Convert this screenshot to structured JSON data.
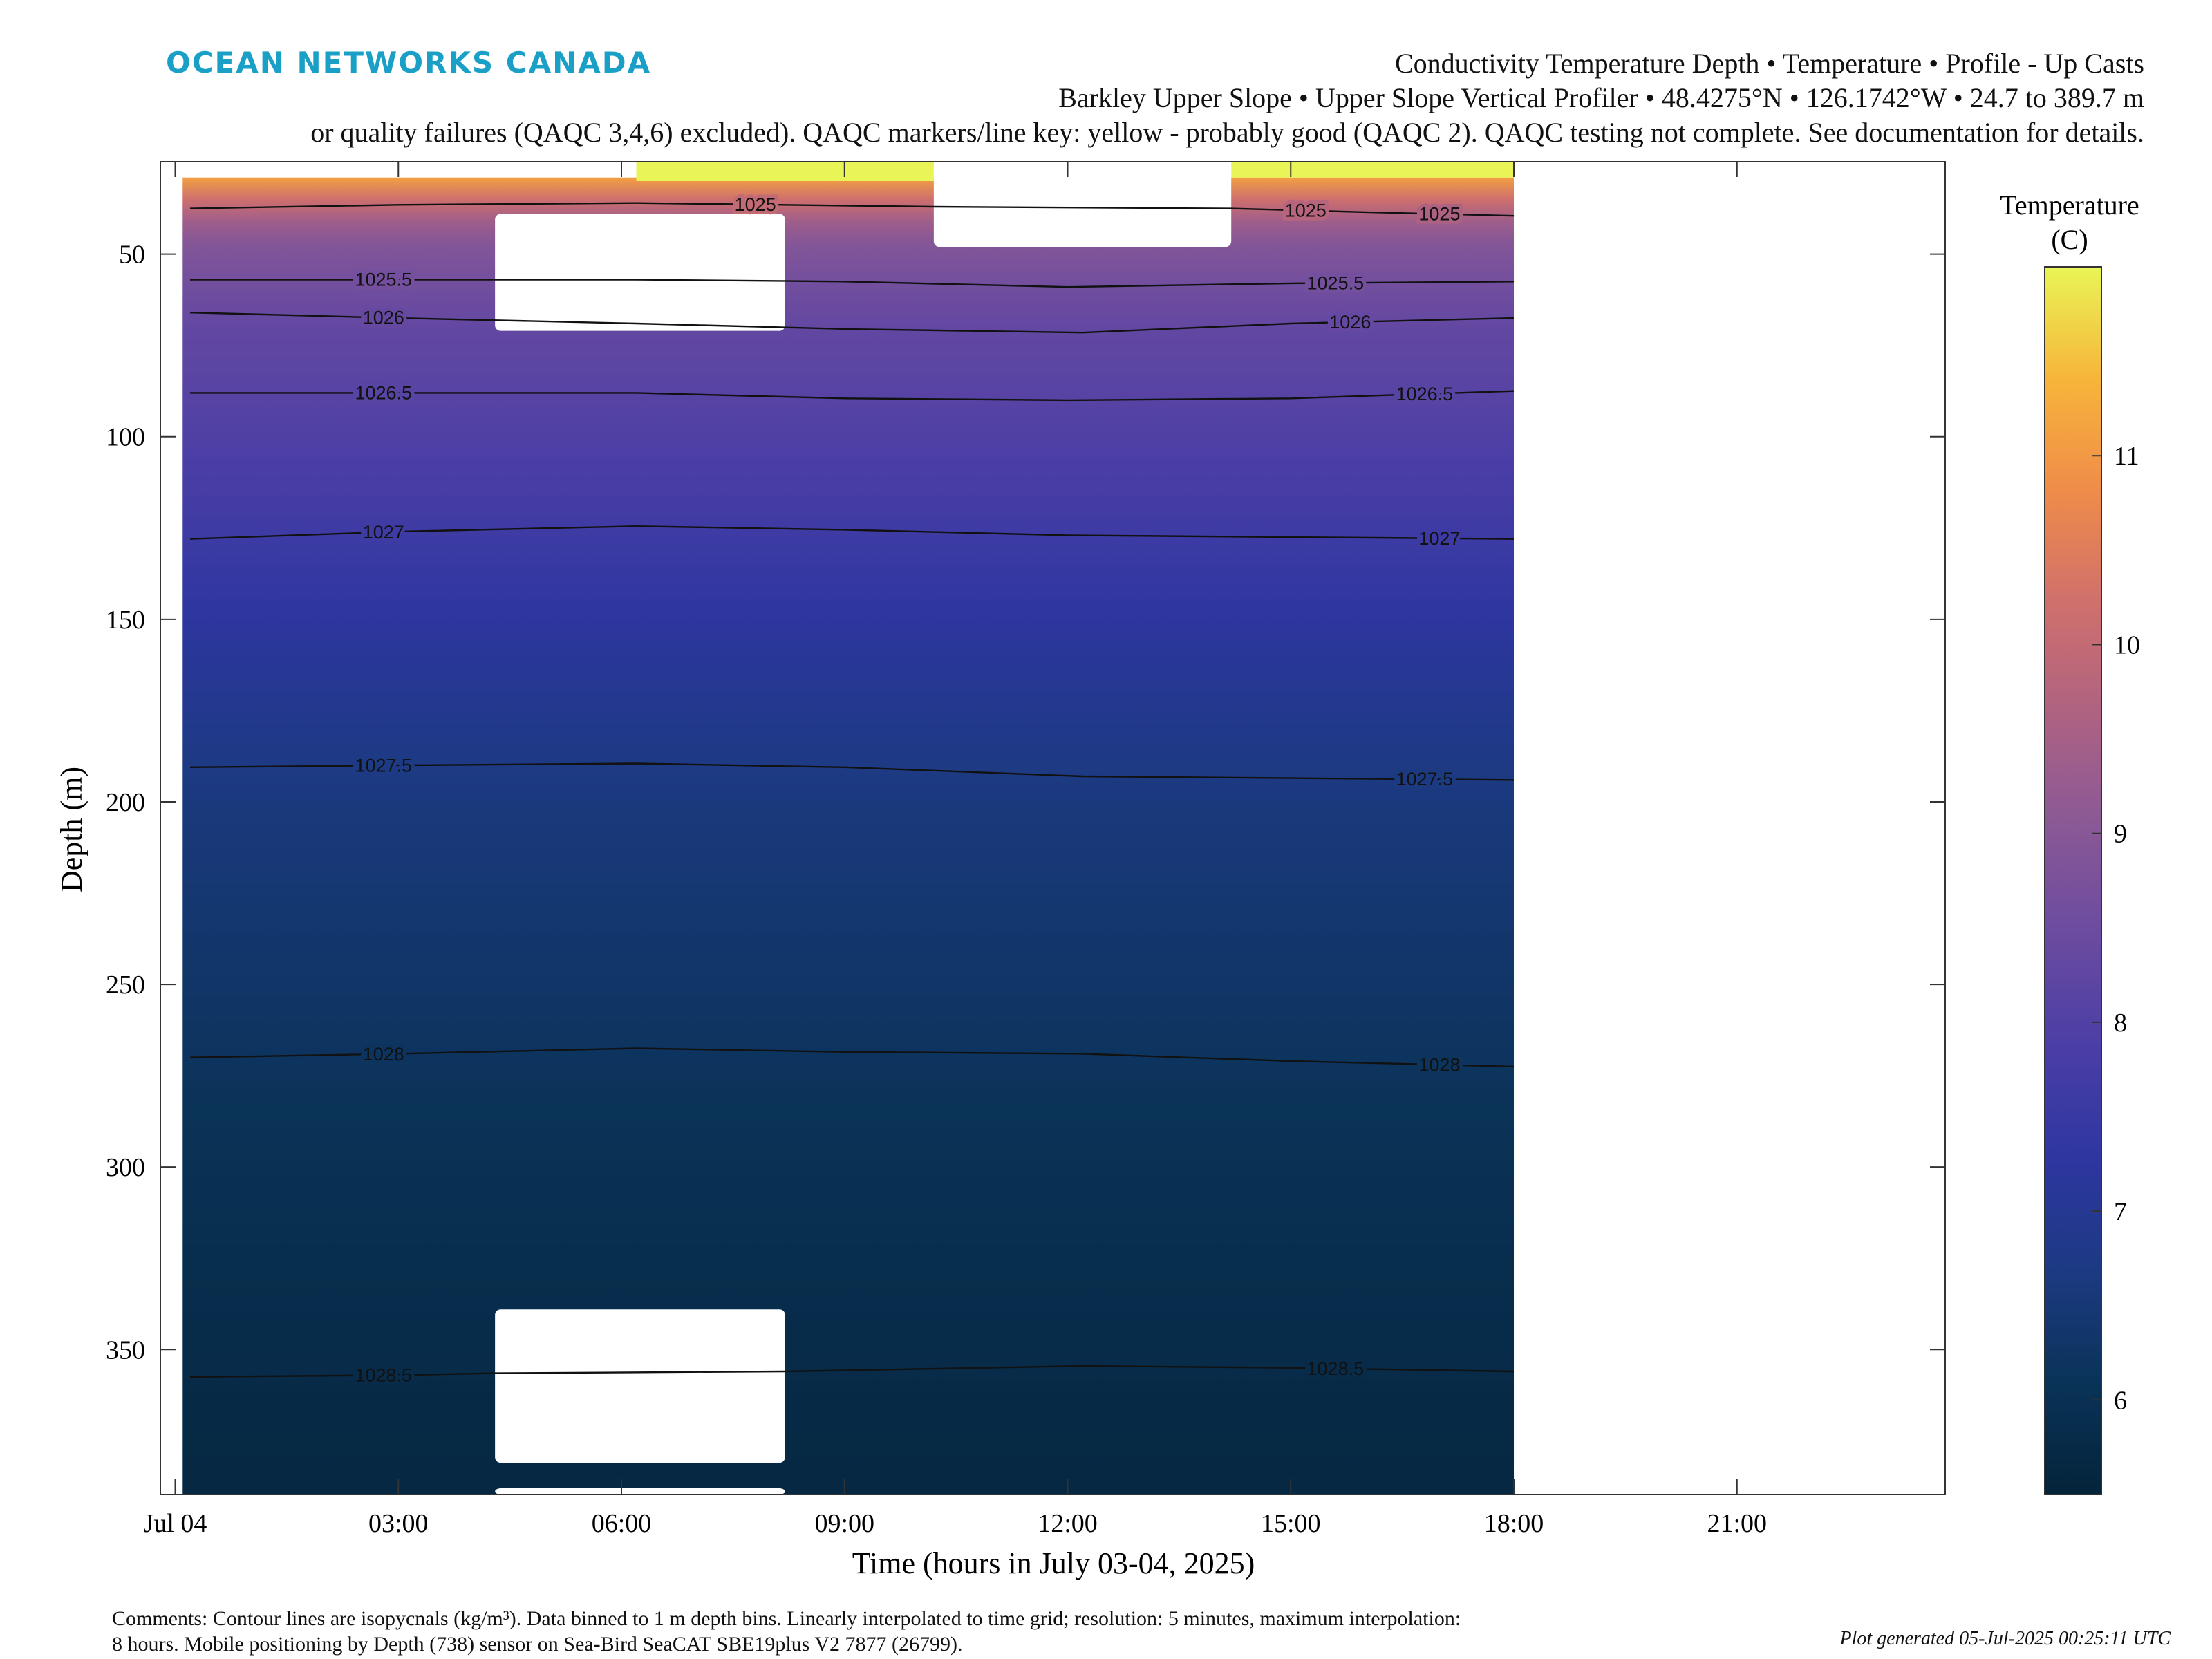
{
  "header": {
    "logo_text": "OCEAN NETWORKS CANADA",
    "title_line1": "Conductivity Temperature Depth • Temperature • Profile - Up Casts",
    "title_line2": "Barkley Upper Slope • Upper Slope Vertical Profiler • 48.4275°N • 126.1742°W • 24.7 to 389.7 m",
    "title_line3": "or quality failures (QAQC 3,4,6) excluded). QAQC markers/line key: yellow - probably good (QAQC 2). QAQC testing not complete. See documentation for details."
  },
  "footer": {
    "comment_line1": "Comments: Contour lines are isopycnals (kg/m³). Data binned to 1 m depth bins. Linearly interpolated to time grid; resolution: 5 minutes, maximum interpolation:",
    "comment_line2": "8 hours. Mobile positioning by Depth (738) sensor on Sea-Bird SeaCAT SBE19plus V2 7877 (26799).",
    "generated": "Plot generated 05-Jul-2025 00:25:11 UTC"
  },
  "colors": {
    "logo": "#1aa0c6",
    "temperature_colormap": [
      "#04243a",
      "#0a3358",
      "#1c3a82",
      "#2e36a0",
      "#4a3ea6",
      "#6a4ba0",
      "#8a5896",
      "#ae6282",
      "#d0706c",
      "#ef8c4a",
      "#f7b53a",
      "#e9f556"
    ]
  },
  "chart_data": {
    "type": "heatmap",
    "xlabel": "Time (hours in July 03-04, 2025)",
    "ylabel": "Depth (m)",
    "xticks": [
      "Jul 04",
      "03:00",
      "06:00",
      "09:00",
      "12:00",
      "15:00",
      "18:00",
      "21:00"
    ],
    "xtick_hours": [
      0,
      3,
      6,
      9,
      12,
      15,
      18,
      21
    ],
    "xlim_hours": [
      -0.2,
      23.8
    ],
    "yticks": [
      50,
      100,
      150,
      200,
      250,
      300,
      350
    ],
    "ylim": [
      24.7,
      389.7
    ],
    "y_reversed": true,
    "data_extent_hours": [
      0.1,
      18.0
    ],
    "colorbar": {
      "label_line1": "Temperature",
      "label_line2": "(C)",
      "ticks": [
        6,
        7,
        8,
        9,
        10,
        11
      ],
      "range": [
        5.5,
        12
      ]
    },
    "temperature_profile": {
      "depth": [
        25,
        30,
        35,
        40,
        45,
        55,
        70,
        90,
        120,
        160,
        200,
        250,
        300,
        350,
        390
      ],
      "temperature": [
        11.5,
        11.0,
        10.2,
        9.5,
        9.0,
        8.7,
        8.3,
        8.1,
        7.7,
        7.1,
        6.6,
        6.3,
        6.0,
        5.8,
        5.65
      ]
    },
    "qaqc_yellow_segments": [
      {
        "hours": [
          6.2,
          10.2
        ],
        "depth": [
          24.7,
          30
        ]
      },
      {
        "hours": [
          14.2,
          18.0
        ],
        "depth": [
          24.7,
          29
        ]
      }
    ],
    "gaps": [
      {
        "hours": [
          4.3,
          8.2
        ],
        "depth": [
          39,
          71
        ]
      },
      {
        "hours": [
          10.2,
          14.2
        ],
        "depth": [
          24.7,
          48
        ]
      },
      {
        "hours": [
          4.3,
          8.2
        ],
        "depth": [
          339,
          381
        ]
      },
      {
        "hours": [
          4.3,
          8.2
        ],
        "depth": [
          388,
          389.7
        ]
      }
    ],
    "isopycnals": [
      {
        "label": "1025",
        "hours": [
          0.2,
          3.0,
          6.2,
          10.2,
          14.2,
          16.0,
          18.0
        ],
        "depth": [
          37.5,
          36.5,
          36,
          37,
          37.5,
          38.5,
          39.5
        ],
        "label_hours": [
          7.8,
          15.2,
          17.0
        ]
      },
      {
        "label": "1025.5",
        "hours": [
          0.2,
          3.0,
          6.2,
          9.0,
          12.0,
          15.0,
          18.0
        ],
        "depth": [
          57,
          57,
          57,
          57.5,
          59,
          58,
          57.5
        ],
        "label_hours": [
          2.8,
          15.6
        ]
      },
      {
        "label": "1026",
        "hours": [
          0.2,
          3.0,
          6.2,
          9.0,
          12.2,
          15.0,
          18.0
        ],
        "depth": [
          66,
          67.5,
          69,
          70.5,
          71.5,
          69,
          67.5
        ],
        "label_hours": [
          2.8,
          15.8
        ]
      },
      {
        "label": "1026.5",
        "hours": [
          0.2,
          3.0,
          6.2,
          9.0,
          12.0,
          15.0,
          18.0
        ],
        "depth": [
          88,
          88,
          88,
          89.5,
          90,
          89.5,
          87.5
        ],
        "label_hours": [
          2.8,
          16.8
        ]
      },
      {
        "label": "1027",
        "hours": [
          0.2,
          3.0,
          6.2,
          9.0,
          12.0,
          15.0,
          18.0
        ],
        "depth": [
          128,
          126,
          124.5,
          125.5,
          127,
          127.5,
          128
        ],
        "label_hours": [
          2.8,
          17.0
        ]
      },
      {
        "label": "1027.5",
        "hours": [
          0.2,
          3.0,
          6.2,
          9.0,
          12.2,
          15.0,
          18.0
        ],
        "depth": [
          190.5,
          190,
          189.5,
          190.5,
          193,
          193.5,
          194
        ],
        "label_hours": [
          2.8,
          16.8
        ]
      },
      {
        "label": "1028",
        "hours": [
          0.2,
          3.0,
          6.2,
          9.0,
          12.2,
          15.0,
          18.0
        ],
        "depth": [
          270,
          269,
          267.5,
          268.5,
          269,
          271,
          272.5
        ],
        "label_hours": [
          2.8,
          17.0
        ]
      },
      {
        "label": "1028.5",
        "hours": [
          0.2,
          3.0,
          4.3,
          8.2,
          12.2,
          15.0,
          18.0
        ],
        "depth": [
          357.5,
          357,
          356.5,
          356,
          354.5,
          355,
          356
        ],
        "label_hours": [
          2.8,
          15.6
        ]
      }
    ]
  }
}
